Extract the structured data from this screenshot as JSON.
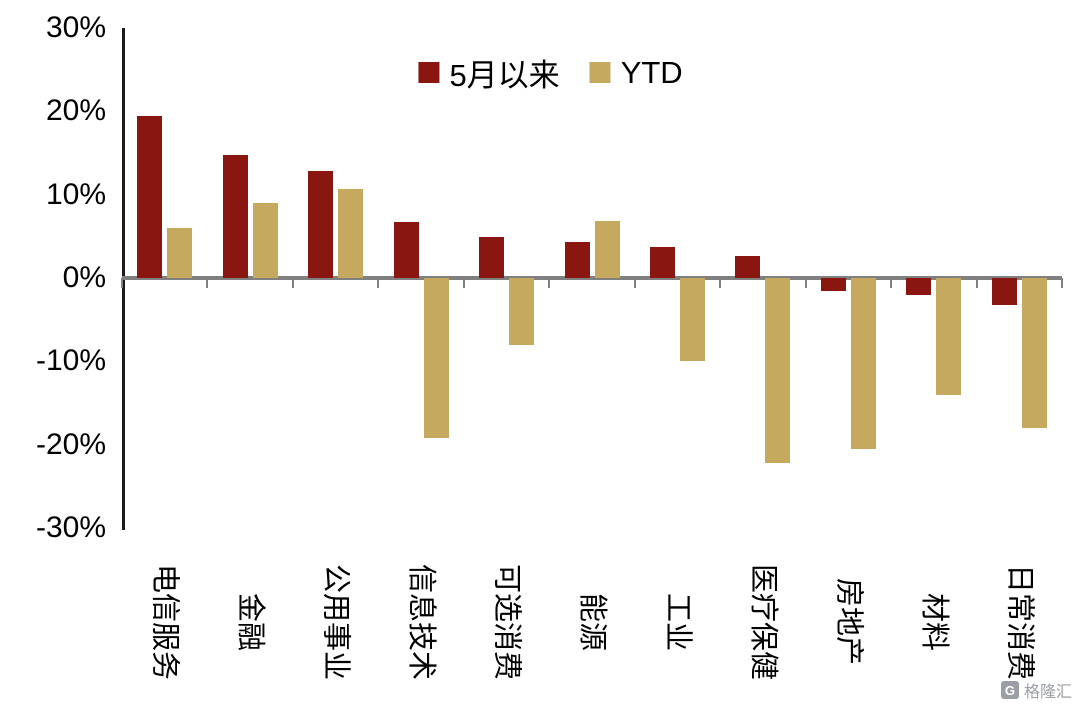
{
  "watermark": {
    "logo_letter": "G",
    "text": "格隆汇"
  },
  "chart_data": {
    "type": "bar",
    "title": "",
    "xlabel": "",
    "ylabel": "",
    "categories": [
      "电信服务",
      "金融",
      "公用事业",
      "信息技术",
      "可选消费",
      "能源",
      "工业",
      "医疗保健",
      "房地产",
      "材料",
      "日常消费"
    ],
    "series": [
      {
        "name": "5月以来",
        "color": "#8A1611",
        "values": [
          19.5,
          14.8,
          12.9,
          6.7,
          4.9,
          4.3,
          3.7,
          2.6,
          -1.5,
          -2.0,
          -3.2
        ]
      },
      {
        "name": "YTD",
        "color": "#C5A95F",
        "values": [
          6.0,
          9.0,
          10.7,
          -19.2,
          -8.0,
          6.8,
          -10.0,
          -22.2,
          -20.5,
          -14.0,
          -18.0
        ]
      }
    ],
    "ylim": [
      -30,
      30
    ],
    "y_ticks": [
      "30%",
      "20%",
      "10%",
      "0%",
      "-10%",
      "-20%",
      "-30%"
    ],
    "y_tick_values": [
      30,
      20,
      10,
      0,
      -10,
      -20,
      -30
    ],
    "grid": false,
    "legend_position": "top-center",
    "zero_line_color": "#808080",
    "axis_line_color": "#1a1a1a"
  }
}
